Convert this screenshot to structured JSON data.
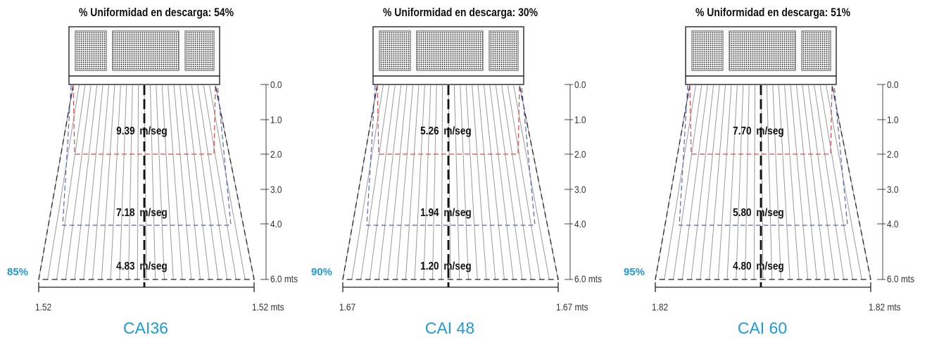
{
  "panels": [
    {
      "title": "% Uniformidad en descarga: 54%",
      "model": "CAI36",
      "edge_percent": "85%",
      "speeds": [
        {
          "value": "9.39",
          "unit": "m/seg"
        },
        {
          "value": "7.18",
          "unit": "m/seg"
        },
        {
          "value": "4.83",
          "unit": "m/seg"
        }
      ],
      "scale_ticks": [
        "0.0",
        "1.0",
        "2.0",
        "3.0",
        "4.0",
        "6.0 mts"
      ],
      "width_left": "1.52",
      "width_right": "1.52 mts"
    },
    {
      "title": "% Uniformidad en descarga: 30%",
      "model": "CAI 48",
      "edge_percent": "90%",
      "speeds": [
        {
          "value": "5.26",
          "unit": "m/seg"
        },
        {
          "value": "1.94",
          "unit": "m/seg"
        },
        {
          "value": "1.20",
          "unit": "m/seg"
        }
      ],
      "scale_ticks": [
        "0.0",
        "1.0",
        "2.0",
        "3.0",
        "4.0",
        "6.0 mts"
      ],
      "width_left": "1.67",
      "width_right": "1.67 mts"
    },
    {
      "title": "% Uniformidad en descarga: 51%",
      "model": "CAI 60",
      "edge_percent": "95%",
      "speeds": [
        {
          "value": "7.70",
          "unit": "m/seg"
        },
        {
          "value": "5.80",
          "unit": "m/seg"
        },
        {
          "value": "4.80",
          "unit": "m/seg"
        }
      ],
      "scale_ticks": [
        "0.0",
        "1.0",
        "2.0",
        "3.0",
        "4.0",
        "6.0 mts"
      ],
      "width_left": "1.82",
      "width_right": "1.82 mts"
    }
  ],
  "colors": {
    "accent": "#1e9ad6",
    "zone_red": "#e0474c",
    "zone_blue": "#5566b8",
    "lines": "#222222"
  }
}
